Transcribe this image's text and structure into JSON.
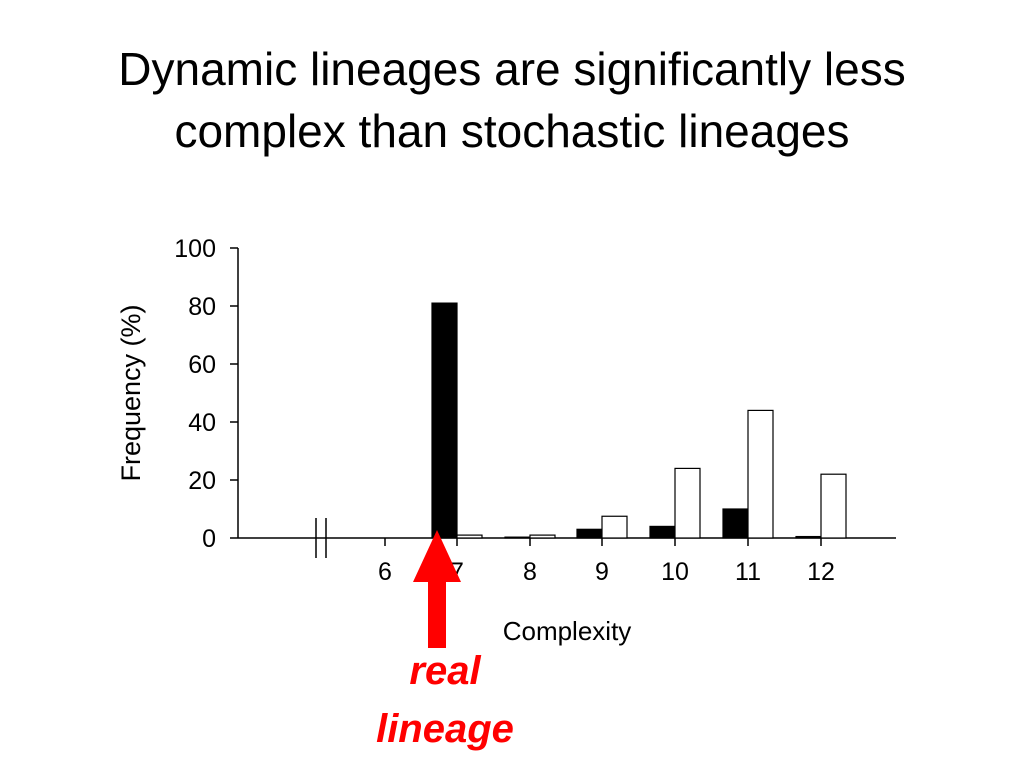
{
  "slide": {
    "title_line1": "Dynamic lineages are significantly less",
    "title_line2": "complex than stochastic lineages"
  },
  "chart_data": {
    "type": "bar",
    "xlabel": "Complexity",
    "ylabel": "Frequency (%)",
    "ylim": [
      0,
      100
    ],
    "yticks": [
      0,
      20,
      40,
      60,
      80,
      100
    ],
    "categories": [
      "6",
      "7",
      "8",
      "9",
      "10",
      "11",
      "12"
    ],
    "axis_break": true,
    "grid": false,
    "legend": "none",
    "series": [
      {
        "fill": "#000000",
        "values": [
          0,
          81,
          0.3,
          3,
          4,
          10,
          0.5
        ]
      },
      {
        "fill": "#ffffff",
        "values": [
          0,
          1,
          1,
          7.5,
          24,
          44,
          22
        ]
      }
    ]
  },
  "annotation": {
    "line1": "real",
    "line2": "lineage",
    "target_category": "7",
    "color": "#ff0000"
  }
}
